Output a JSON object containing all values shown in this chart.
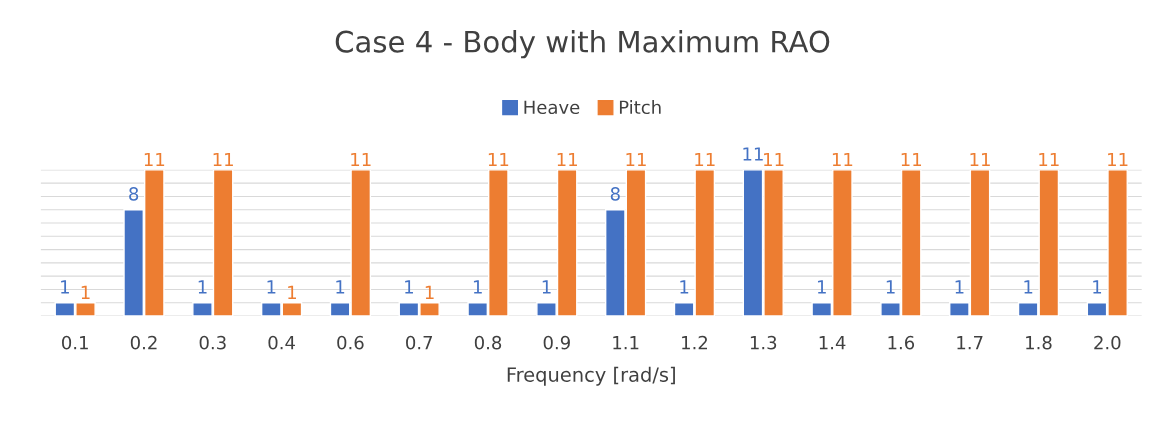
{
  "chart_data": {
    "type": "bar",
    "title": "Case 4 - Body with Maximum RAO",
    "xlabel": "Frequency [rad/s]",
    "categories": [
      "0.1",
      "0.2",
      "0.3",
      "0.4",
      "0.6",
      "0.7",
      "0.8",
      "0.9",
      "1.1",
      "1.2",
      "1.3",
      "1.4",
      "1.6",
      "1.7",
      "1.8",
      "2.0"
    ],
    "series": [
      {
        "name": "Heave",
        "color": "#4472c4",
        "values": [
          1,
          8,
          1,
          1,
          1,
          1,
          1,
          1,
          8,
          1,
          11,
          1,
          1,
          1,
          1,
          1
        ]
      },
      {
        "name": "Pitch",
        "color": "#ed7d31",
        "values": [
          1,
          11,
          11,
          1,
          11,
          1,
          11,
          11,
          11,
          11,
          11,
          11,
          11,
          11,
          11,
          11
        ]
      }
    ],
    "ylim": [
      0,
      11
    ],
    "yticks": [
      {
        "value": 0,
        "label": null
      },
      {
        "value": 1,
        "label": null
      },
      {
        "value": 2,
        "label": null
      },
      {
        "value": 3,
        "label": null
      },
      {
        "value": 4,
        "label": null
      },
      {
        "value": 5,
        "label": null
      },
      {
        "value": 6,
        "label": null
      },
      {
        "value": 7,
        "label": null
      },
      {
        "value": 8,
        "label": null
      },
      {
        "value": 9,
        "label": null
      },
      {
        "value": 10,
        "label": null
      },
      {
        "value": 11,
        "label": null
      }
    ],
    "tick_labels": "x",
    "grid": "y",
    "legend": "top",
    "data_labels": true
  }
}
